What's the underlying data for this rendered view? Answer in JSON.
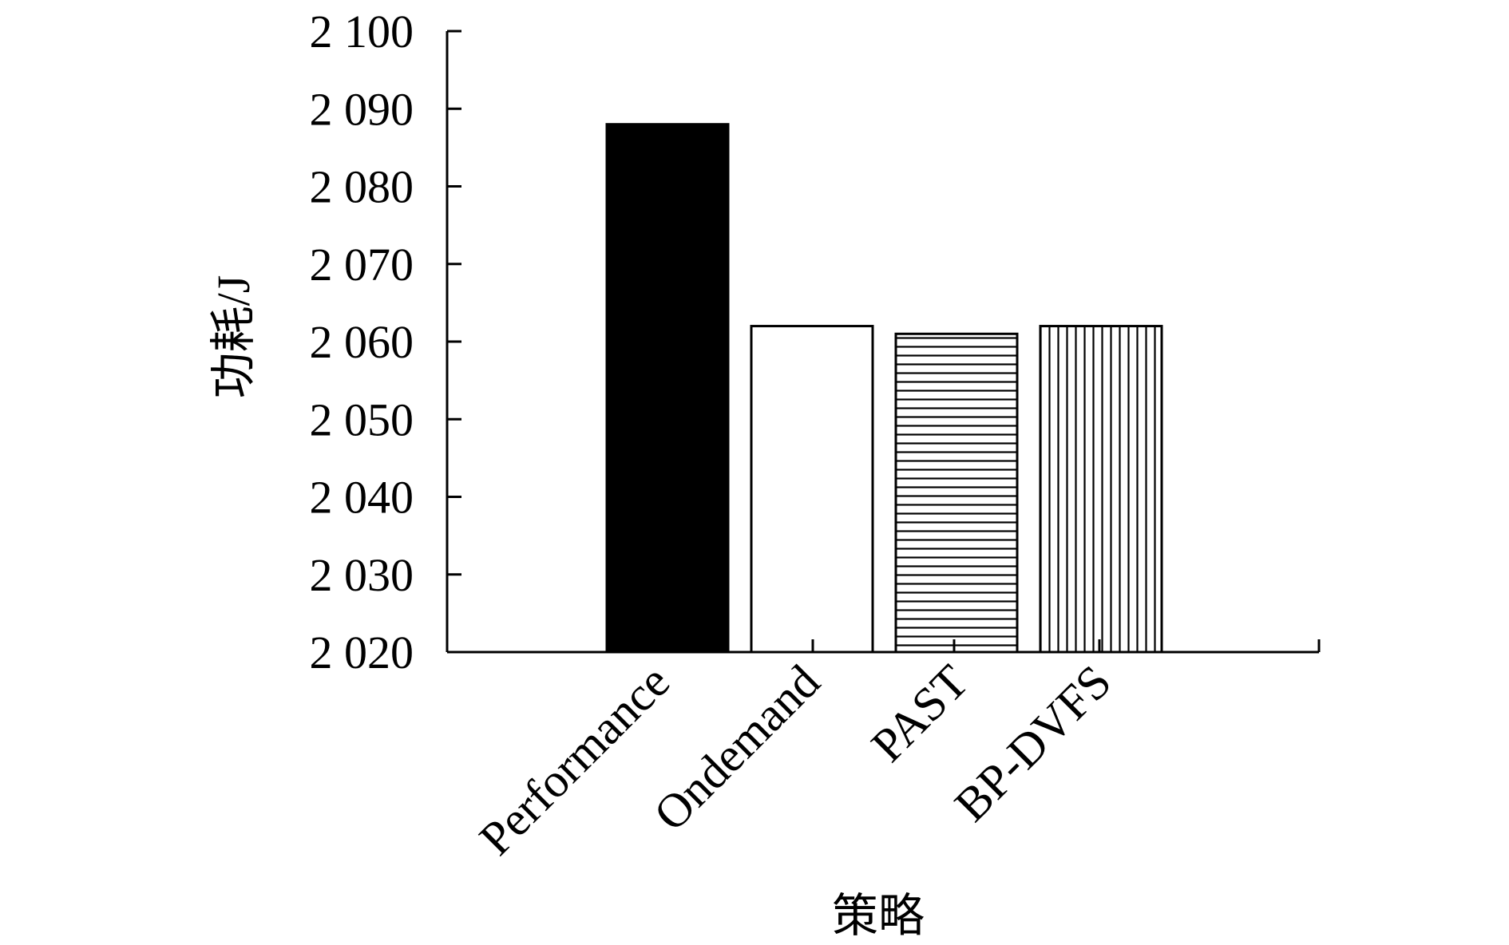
{
  "chart_data": {
    "type": "bar",
    "title": "",
    "xlabel": "策略",
    "ylabel": "功耗/J",
    "categories": [
      "Performance",
      "Ondemand",
      "PAST",
      "BP-DVFS"
    ],
    "values": [
      2088,
      2062,
      2061,
      2062
    ],
    "ylim": [
      2020,
      2100
    ],
    "yticks": [
      2020,
      2030,
      2040,
      2050,
      2060,
      2070,
      2080,
      2090,
      2100
    ],
    "ytick_labels": [
      "2 020",
      "2 030",
      "2 040",
      "2 050",
      "2 060",
      "2 070",
      "2 080",
      "2 090",
      "2 100"
    ],
    "bar_fills": [
      "solid-black",
      "white",
      "horizontal-lines",
      "vertical-lines"
    ],
    "grid": false,
    "legend": "none"
  }
}
